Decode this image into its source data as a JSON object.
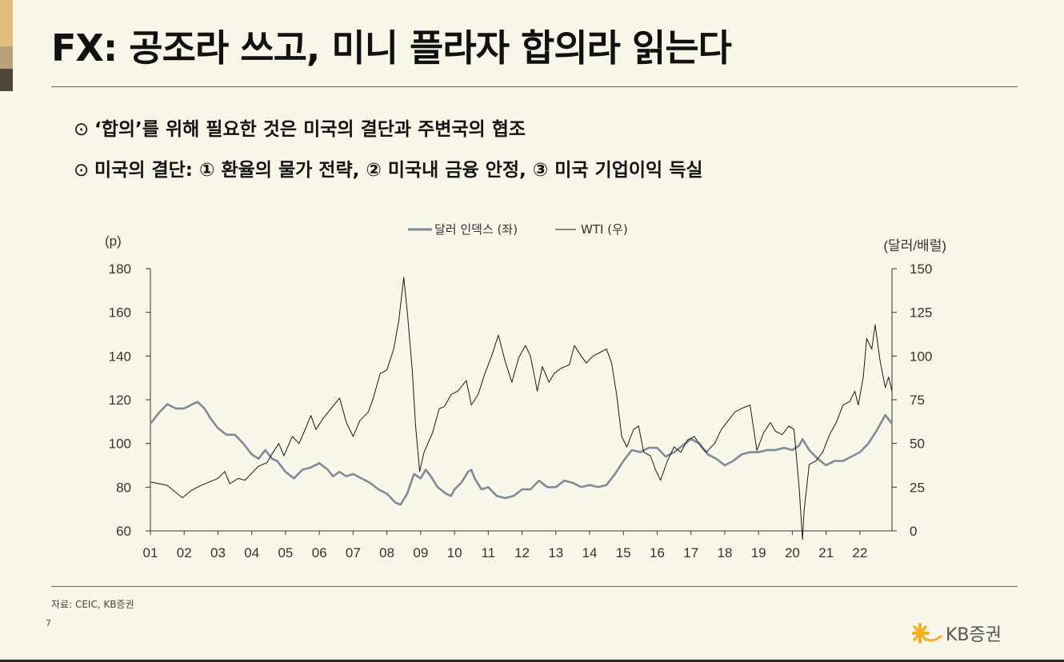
{
  "slide": {
    "title": "FX: 공조라 쓰고, 미니 플라자 합의라 읽는다",
    "bullets": [
      {
        "mark": "⊙",
        "text": "‘합의’를 위해 필요한 것은 미국의 결단과 주변국의 협조"
      },
      {
        "mark": "⊙",
        "text": "미국의 결단: ① 환율의 물가 전략, ② 미국내 금융 안정, ③ 미국 기업이익 득실"
      }
    ],
    "source": "자료: CEIC, KB증권",
    "page_number": "7",
    "logo_text": "KB증권"
  },
  "colors": {
    "dollar_index": "#7f8b9a",
    "wti": "#1a1a1a",
    "axis": "#333333",
    "logo_star": "#f2b01e"
  },
  "chart_data": {
    "type": "line",
    "title": "",
    "x_tick_labels": [
      "01",
      "02",
      "03",
      "04",
      "05",
      "06",
      "07",
      "08",
      "09",
      "10",
      "11",
      "12",
      "13",
      "14",
      "15",
      "16",
      "17",
      "18",
      "19",
      "20",
      "21",
      "22"
    ],
    "x_range": [
      2001.0,
      2022.95
    ],
    "y_left": {
      "unit_label": "(p)",
      "range": [
        60,
        180
      ],
      "ticks": [
        60,
        80,
        100,
        120,
        140,
        160,
        180
      ]
    },
    "y_right": {
      "unit_label": "(달러/배럴)",
      "range": [
        0,
        150
      ],
      "ticks": [
        0,
        25,
        50,
        75,
        100,
        125,
        150
      ]
    },
    "legend": {
      "position": "top-center"
    },
    "series": [
      {
        "name": "달러 인덱스 (좌)",
        "axis": "left",
        "points": [
          [
            2001.0,
            109
          ],
          [
            2001.25,
            114
          ],
          [
            2001.5,
            118
          ],
          [
            2001.75,
            116
          ],
          [
            2002.0,
            116
          ],
          [
            2002.25,
            118
          ],
          [
            2002.4,
            119
          ],
          [
            2002.6,
            116
          ],
          [
            2002.8,
            111
          ],
          [
            2003.0,
            107
          ],
          [
            2003.25,
            104
          ],
          [
            2003.5,
            104
          ],
          [
            2003.75,
            100
          ],
          [
            2004.0,
            95
          ],
          [
            2004.2,
            93
          ],
          [
            2004.4,
            97
          ],
          [
            2004.6,
            93
          ],
          [
            2004.75,
            92
          ],
          [
            2005.0,
            87
          ],
          [
            2005.25,
            84
          ],
          [
            2005.5,
            88
          ],
          [
            2005.75,
            89
          ],
          [
            2006.0,
            91
          ],
          [
            2006.25,
            88
          ],
          [
            2006.4,
            85
          ],
          [
            2006.6,
            87
          ],
          [
            2006.8,
            85
          ],
          [
            2007.0,
            86
          ],
          [
            2007.25,
            84
          ],
          [
            2007.5,
            82
          ],
          [
            2007.75,
            79
          ],
          [
            2008.0,
            77
          ],
          [
            2008.25,
            73
          ],
          [
            2008.4,
            72
          ],
          [
            2008.6,
            77
          ],
          [
            2008.8,
            86
          ],
          [
            2009.0,
            84
          ],
          [
            2009.15,
            88
          ],
          [
            2009.3,
            85
          ],
          [
            2009.5,
            80
          ],
          [
            2009.75,
            77
          ],
          [
            2009.9,
            76
          ],
          [
            2010.0,
            79
          ],
          [
            2010.2,
            82
          ],
          [
            2010.4,
            87
          ],
          [
            2010.5,
            88
          ],
          [
            2010.6,
            84
          ],
          [
            2010.8,
            79
          ],
          [
            2011.0,
            80
          ],
          [
            2011.25,
            76
          ],
          [
            2011.5,
            75
          ],
          [
            2011.75,
            76
          ],
          [
            2012.0,
            79
          ],
          [
            2012.25,
            79
          ],
          [
            2012.5,
            83
          ],
          [
            2012.75,
            80
          ],
          [
            2013.0,
            80
          ],
          [
            2013.25,
            83
          ],
          [
            2013.5,
            82
          ],
          [
            2013.75,
            80
          ],
          [
            2014.0,
            81
          ],
          [
            2014.25,
            80
          ],
          [
            2014.5,
            81
          ],
          [
            2014.75,
            86
          ],
          [
            2015.0,
            92
          ],
          [
            2015.25,
            97
          ],
          [
            2015.5,
            96
          ],
          [
            2015.75,
            98
          ],
          [
            2016.0,
            98
          ],
          [
            2016.25,
            94
          ],
          [
            2016.5,
            96
          ],
          [
            2016.75,
            99
          ],
          [
            2017.0,
            102
          ],
          [
            2017.25,
            100
          ],
          [
            2017.5,
            95
          ],
          [
            2017.75,
            93
          ],
          [
            2018.0,
            90
          ],
          [
            2018.25,
            92
          ],
          [
            2018.5,
            95
          ],
          [
            2018.75,
            96
          ],
          [
            2019.0,
            96
          ],
          [
            2019.25,
            97
          ],
          [
            2019.5,
            97
          ],
          [
            2019.75,
            98
          ],
          [
            2020.0,
            97
          ],
          [
            2020.2,
            99
          ],
          [
            2020.3,
            102
          ],
          [
            2020.5,
            97
          ],
          [
            2020.75,
            93
          ],
          [
            2021.0,
            90
          ],
          [
            2021.25,
            92
          ],
          [
            2021.5,
            92
          ],
          [
            2021.75,
            94
          ],
          [
            2022.0,
            96
          ],
          [
            2022.25,
            100
          ],
          [
            2022.5,
            106
          ],
          [
            2022.75,
            113
          ],
          [
            2022.95,
            109
          ]
        ]
      },
      {
        "name": "WTI (우)",
        "axis": "right",
        "points": [
          [
            2001.0,
            28
          ],
          [
            2001.25,
            27
          ],
          [
            2001.5,
            26
          ],
          [
            2001.75,
            22
          ],
          [
            2001.95,
            19
          ],
          [
            2002.2,
            23
          ],
          [
            2002.5,
            26
          ],
          [
            2002.75,
            28
          ],
          [
            2003.0,
            30
          ],
          [
            2003.2,
            34
          ],
          [
            2003.35,
            27
          ],
          [
            2003.6,
            30
          ],
          [
            2003.8,
            29
          ],
          [
            2004.0,
            33
          ],
          [
            2004.2,
            37
          ],
          [
            2004.45,
            39
          ],
          [
            2004.6,
            44
          ],
          [
            2004.8,
            50
          ],
          [
            2004.95,
            43
          ],
          [
            2005.2,
            54
          ],
          [
            2005.4,
            50
          ],
          [
            2005.6,
            59
          ],
          [
            2005.75,
            66
          ],
          [
            2005.9,
            58
          ],
          [
            2006.1,
            64
          ],
          [
            2006.35,
            70
          ],
          [
            2006.6,
            76
          ],
          [
            2006.8,
            62
          ],
          [
            2007.0,
            54
          ],
          [
            2007.2,
            63
          ],
          [
            2007.45,
            68
          ],
          [
            2007.6,
            76
          ],
          [
            2007.8,
            90
          ],
          [
            2008.0,
            92
          ],
          [
            2008.2,
            104
          ],
          [
            2008.35,
            120
          ],
          [
            2008.5,
            145
          ],
          [
            2008.6,
            126
          ],
          [
            2008.75,
            92
          ],
          [
            2008.85,
            60
          ],
          [
            2008.97,
            34
          ],
          [
            2009.1,
            45
          ],
          [
            2009.35,
            56
          ],
          [
            2009.55,
            70
          ],
          [
            2009.7,
            71
          ],
          [
            2009.9,
            78
          ],
          [
            2010.1,
            80
          ],
          [
            2010.35,
            86
          ],
          [
            2010.5,
            72
          ],
          [
            2010.7,
            78
          ],
          [
            2010.9,
            90
          ],
          [
            2011.1,
            100
          ],
          [
            2011.3,
            112
          ],
          [
            2011.5,
            97
          ],
          [
            2011.7,
            85
          ],
          [
            2011.9,
            99
          ],
          [
            2012.1,
            106
          ],
          [
            2012.25,
            100
          ],
          [
            2012.45,
            80
          ],
          [
            2012.6,
            94
          ],
          [
            2012.8,
            85
          ],
          [
            2012.95,
            90
          ],
          [
            2013.15,
            93
          ],
          [
            2013.4,
            95
          ],
          [
            2013.55,
            106
          ],
          [
            2013.75,
            100
          ],
          [
            2013.9,
            96
          ],
          [
            2014.1,
            100
          ],
          [
            2014.3,
            102
          ],
          [
            2014.5,
            104
          ],
          [
            2014.65,
            96
          ],
          [
            2014.8,
            78
          ],
          [
            2014.95,
            54
          ],
          [
            2015.1,
            48
          ],
          [
            2015.3,
            58
          ],
          [
            2015.45,
            60
          ],
          [
            2015.6,
            45
          ],
          [
            2015.8,
            43
          ],
          [
            2015.95,
            35
          ],
          [
            2016.1,
            29
          ],
          [
            2016.3,
            40
          ],
          [
            2016.5,
            48
          ],
          [
            2016.7,
            45
          ],
          [
            2016.9,
            52
          ],
          [
            2017.1,
            54
          ],
          [
            2017.3,
            48
          ],
          [
            2017.45,
            45
          ],
          [
            2017.7,
            50
          ],
          [
            2017.9,
            58
          ],
          [
            2018.1,
            63
          ],
          [
            2018.3,
            68
          ],
          [
            2018.5,
            70
          ],
          [
            2018.75,
            72
          ],
          [
            2018.95,
            46
          ],
          [
            2019.15,
            56
          ],
          [
            2019.35,
            62
          ],
          [
            2019.5,
            57
          ],
          [
            2019.7,
            55
          ],
          [
            2019.9,
            60
          ],
          [
            2020.05,
            58
          ],
          [
            2020.2,
            25
          ],
          [
            2020.3,
            -5
          ],
          [
            2020.35,
            12
          ],
          [
            2020.5,
            38
          ],
          [
            2020.7,
            40
          ],
          [
            2020.9,
            45
          ],
          [
            2021.1,
            55
          ],
          [
            2021.3,
            62
          ],
          [
            2021.5,
            72
          ],
          [
            2021.7,
            74
          ],
          [
            2021.85,
            80
          ],
          [
            2021.95,
            72
          ],
          [
            2022.1,
            88
          ],
          [
            2022.2,
            110
          ],
          [
            2022.35,
            104
          ],
          [
            2022.45,
            118
          ],
          [
            2022.6,
            97
          ],
          [
            2022.75,
            82
          ],
          [
            2022.85,
            88
          ],
          [
            2022.95,
            80
          ]
        ]
      }
    ]
  }
}
